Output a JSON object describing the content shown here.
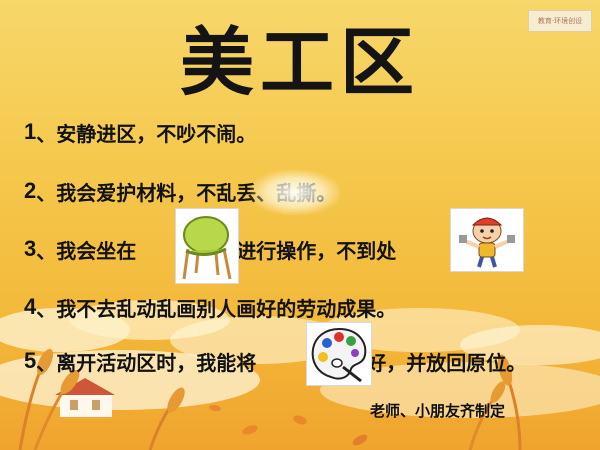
{
  "tag_text": "教育·环境创设",
  "title": "美工区",
  "rules": [
    {
      "number": "1",
      "text": "、安静进区，不吵不闹。"
    },
    {
      "number": "2",
      "text": "、我会爱护材料，不乱丢、乱撕。"
    },
    {
      "number": "3",
      "text_before": "、我会坐在",
      "text_after": "上进行操作，不到处"
    },
    {
      "number": "4",
      "text": "、我不去乱动乱画别人画好的劳动成果。"
    },
    {
      "number": "5",
      "text_before": "、离开活动区时，我能将",
      "text_after": "整理好，并放回原位。"
    }
  ],
  "icons": {
    "chair": "chair-icon",
    "worker_boy": "worker-boy-icon",
    "palette": "paint-palette-icon"
  },
  "signature": "老师、小朋友齐制定",
  "colors": {
    "poster_top": "#f7d76a",
    "poster_bottom": "#f0a42e",
    "text": "#121212"
  }
}
